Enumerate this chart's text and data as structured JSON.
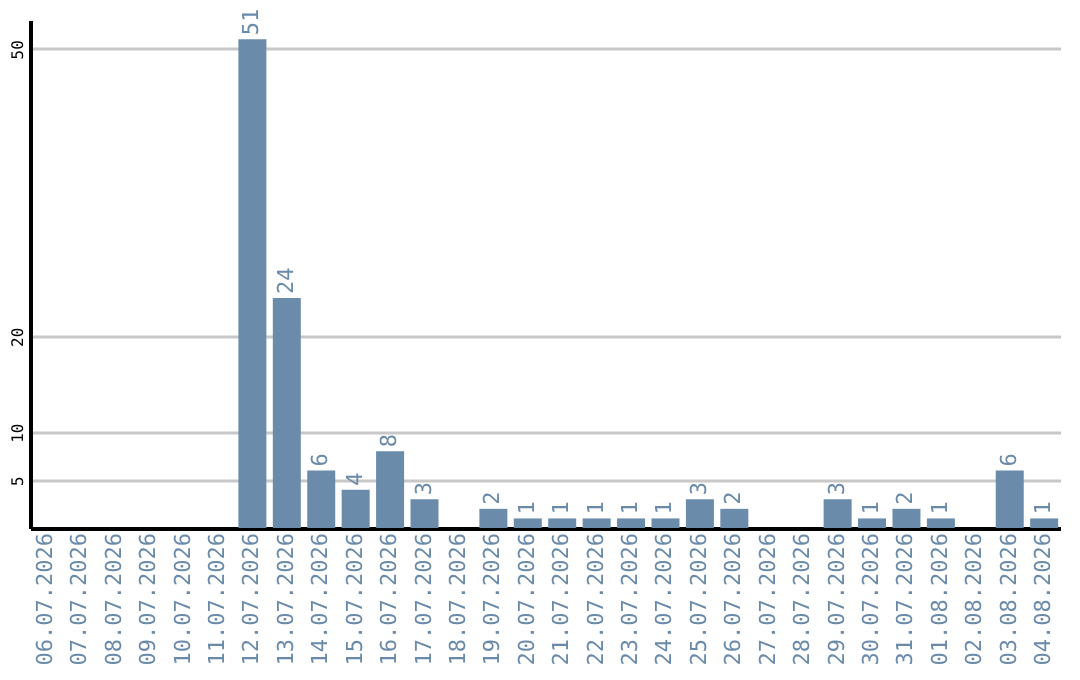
{
  "chart_data": {
    "type": "bar",
    "categories": [
      "06.07.2026",
      "07.07.2026",
      "08.07.2026",
      "09.07.2026",
      "10.07.2026",
      "11.07.2026",
      "12.07.2026",
      "13.07.2026",
      "14.07.2026",
      "15.07.2026",
      "16.07.2026",
      "17.07.2026",
      "18.07.2026",
      "19.07.2026",
      "20.07.2026",
      "21.07.2026",
      "22.07.2026",
      "23.07.2026",
      "24.07.2026",
      "25.07.2026",
      "26.07.2026",
      "27.07.2026",
      "28.07.2026",
      "29.07.2026",
      "30.07.2026",
      "31.07.2026",
      "01.08.2026",
      "02.08.2026",
      "03.08.2026",
      "04.08.2026"
    ],
    "values": [
      0,
      0,
      0,
      0,
      0,
      0,
      51,
      24,
      6,
      4,
      8,
      3,
      0,
      2,
      1,
      1,
      1,
      1,
      1,
      3,
      2,
      0,
      0,
      3,
      1,
      2,
      1,
      0,
      6,
      1
    ],
    "value_labels": [
      null,
      null,
      null,
      null,
      null,
      null,
      "51",
      "24",
      "6",
      "4",
      "8",
      "3",
      null,
      "2",
      "1",
      "1",
      "1",
      "1",
      "1",
      "3",
      "2",
      null,
      null,
      "3",
      "1",
      "2",
      "1",
      null,
      "6",
      "1"
    ],
    "color": "#6a8caa",
    "ylim": [
      0,
      53
    ],
    "yticks": [
      5,
      10,
      20,
      50
    ],
    "grid": "y"
  }
}
